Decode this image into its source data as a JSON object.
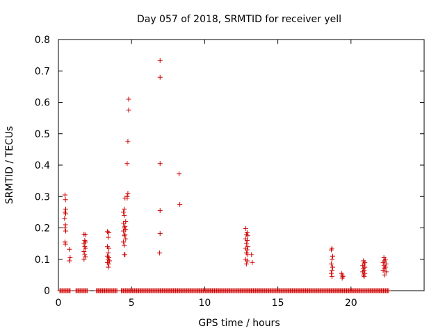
{
  "chart_data": {
    "type": "scatter",
    "title": "Day 057 of 2018, SRMTID for receiver yell",
    "xlabel": "GPS time / hours",
    "ylabel": "SRMTID / TECUs",
    "xlim": [
      0,
      25
    ],
    "ylim": [
      0,
      0.8
    ],
    "xticks": [
      0,
      5,
      10,
      15,
      20
    ],
    "xtick_labels": [
      "0",
      "5",
      "10",
      "15",
      "20"
    ],
    "yticks": [
      0,
      0.1,
      0.2,
      0.3,
      0.4,
      0.5,
      0.6,
      0.7,
      0.8
    ],
    "ytick_labels": [
      "0",
      "0.1",
      "0.2",
      "0.3",
      "0.4",
      "0.5",
      "0.6",
      "0.7",
      "0.8"
    ],
    "grid": false,
    "series": [
      {
        "name": "SRMTID",
        "color": "#cc0000",
        "marker": "plus",
        "points": [
          [
            0.45,
            0.305
          ],
          [
            0.48,
            0.29
          ],
          [
            0.5,
            0.26
          ],
          [
            0.45,
            0.25
          ],
          [
            0.5,
            0.245
          ],
          [
            0.42,
            0.23
          ],
          [
            0.48,
            0.21
          ],
          [
            0.45,
            0.2
          ],
          [
            0.5,
            0.19
          ],
          [
            0.45,
            0.155
          ],
          [
            0.48,
            0.148
          ],
          [
            0.75,
            0.132
          ],
          [
            0.8,
            0.105
          ],
          [
            0.75,
            0.095
          ],
          [
            1.75,
            0.18
          ],
          [
            1.85,
            0.178
          ],
          [
            1.8,
            0.16
          ],
          [
            1.85,
            0.155
          ],
          [
            1.75,
            0.15
          ],
          [
            1.8,
            0.14
          ],
          [
            1.85,
            0.135
          ],
          [
            1.75,
            0.125
          ],
          [
            1.8,
            0.115
          ],
          [
            1.85,
            0.108
          ],
          [
            1.75,
            0.1
          ],
          [
            3.35,
            0.188
          ],
          [
            3.45,
            0.185
          ],
          [
            3.4,
            0.17
          ],
          [
            3.35,
            0.14
          ],
          [
            3.45,
            0.135
          ],
          [
            3.4,
            0.12
          ],
          [
            3.35,
            0.11
          ],
          [
            3.45,
            0.105
          ],
          [
            3.4,
            0.1
          ],
          [
            3.5,
            0.095
          ],
          [
            3.35,
            0.09
          ],
          [
            3.45,
            0.085
          ],
          [
            3.4,
            0.075
          ],
          [
            4.55,
            0.295
          ],
          [
            4.5,
            0.26
          ],
          [
            4.45,
            0.25
          ],
          [
            4.5,
            0.24
          ],
          [
            4.6,
            0.22
          ],
          [
            4.45,
            0.215
          ],
          [
            4.55,
            0.205
          ],
          [
            4.5,
            0.2
          ],
          [
            4.6,
            0.195
          ],
          [
            4.45,
            0.19
          ],
          [
            4.55,
            0.18
          ],
          [
            4.5,
            0.175
          ],
          [
            4.6,
            0.165
          ],
          [
            4.45,
            0.155
          ],
          [
            4.5,
            0.145
          ],
          [
            4.5,
            0.115
          ],
          [
            4.55,
            0.115
          ],
          [
            4.75,
            0.31
          ],
          [
            4.7,
            0.3
          ],
          [
            4.7,
            0.295
          ],
          [
            4.7,
            0.405
          ],
          [
            4.75,
            0.476
          ],
          [
            4.8,
            0.575
          ],
          [
            4.8,
            0.61
          ],
          [
            6.95,
            0.733
          ],
          [
            6.95,
            0.68
          ],
          [
            6.95,
            0.405
          ],
          [
            6.95,
            0.255
          ],
          [
            6.95,
            0.182
          ],
          [
            6.92,
            0.12
          ],
          [
            8.25,
            0.372
          ],
          [
            8.3,
            0.275
          ],
          [
            12.8,
            0.198
          ],
          [
            12.9,
            0.185
          ],
          [
            12.85,
            0.18
          ],
          [
            12.95,
            0.175
          ],
          [
            12.8,
            0.165
          ],
          [
            12.9,
            0.16
          ],
          [
            12.85,
            0.15
          ],
          [
            12.95,
            0.14
          ],
          [
            12.8,
            0.135
          ],
          [
            12.9,
            0.13
          ],
          [
            12.85,
            0.12
          ],
          [
            12.95,
            0.115
          ],
          [
            12.8,
            0.1
          ],
          [
            12.9,
            0.095
          ],
          [
            12.85,
            0.085
          ],
          [
            13.2,
            0.115
          ],
          [
            13.25,
            0.09
          ],
          [
            18.7,
            0.135
          ],
          [
            18.65,
            0.13
          ],
          [
            18.75,
            0.11
          ],
          [
            18.7,
            0.1
          ],
          [
            18.65,
            0.085
          ],
          [
            18.75,
            0.075
          ],
          [
            18.7,
            0.065
          ],
          [
            18.65,
            0.055
          ],
          [
            18.7,
            0.045
          ],
          [
            19.35,
            0.055
          ],
          [
            19.4,
            0.05
          ],
          [
            19.45,
            0.045
          ],
          [
            19.4,
            0.04
          ],
          [
            20.85,
            0.095
          ],
          [
            20.95,
            0.09
          ],
          [
            20.9,
            0.085
          ],
          [
            20.8,
            0.08
          ],
          [
            20.95,
            0.075
          ],
          [
            20.85,
            0.07
          ],
          [
            20.9,
            0.065
          ],
          [
            20.8,
            0.06
          ],
          [
            20.95,
            0.055
          ],
          [
            20.85,
            0.05
          ],
          [
            20.9,
            0.045
          ],
          [
            22.25,
            0.105
          ],
          [
            22.35,
            0.1
          ],
          [
            22.3,
            0.095
          ],
          [
            22.2,
            0.09
          ],
          [
            22.4,
            0.085
          ],
          [
            22.25,
            0.08
          ],
          [
            22.35,
            0.075
          ],
          [
            22.3,
            0.07
          ],
          [
            22.2,
            0.065
          ],
          [
            22.4,
            0.06
          ],
          [
            22.3,
            0.05
          ]
        ],
        "zero_segments": [
          [
            0.1,
            0.85
          ],
          [
            1.2,
            2.0
          ],
          [
            2.6,
            4.0
          ],
          [
            4.3,
            22.6
          ]
        ],
        "zero_step": 0.07
      }
    ]
  }
}
